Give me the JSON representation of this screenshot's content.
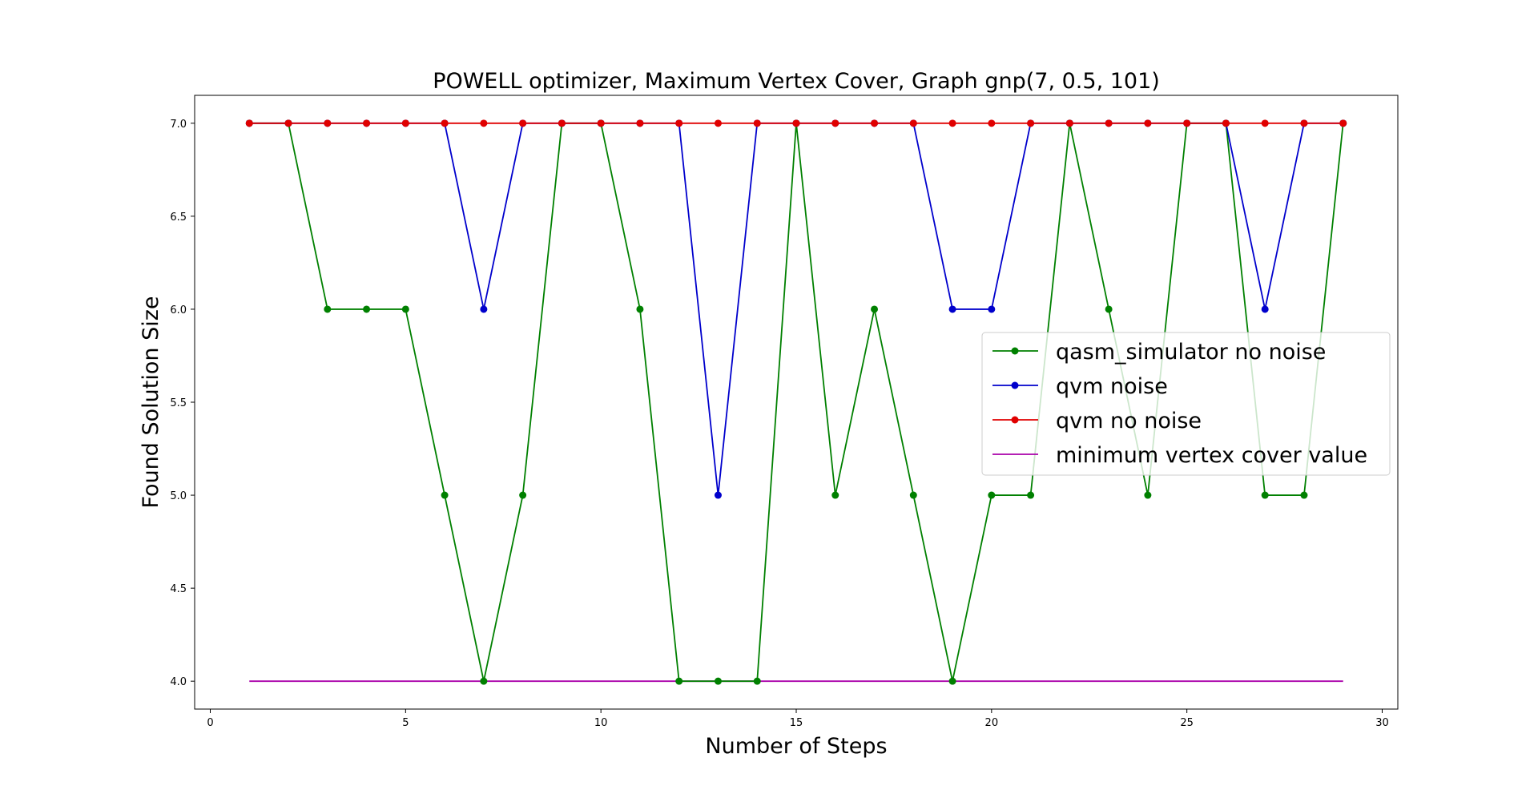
{
  "chart_data": {
    "type": "line",
    "title": "POWELL optimizer, Maximum Vertex Cover, Graph gnp(7, 0.5, 101)",
    "xlabel": "Number of Steps",
    "ylabel": "Found Solution Size",
    "xlim": [
      -0.4,
      30.4
    ],
    "ylim": [
      3.85,
      7.15
    ],
    "xticks": [
      0,
      5,
      10,
      15,
      20,
      25,
      30
    ],
    "yticks": [
      4.0,
      4.5,
      5.0,
      5.5,
      6.0,
      6.5,
      7.0
    ],
    "xtick_labels": [
      "0",
      "5",
      "10",
      "15",
      "20",
      "25",
      "30"
    ],
    "ytick_labels": [
      "4.0",
      "4.5",
      "5.0",
      "5.5",
      "6.0",
      "6.5",
      "7.0"
    ],
    "grid": false,
    "legend_position": "center-right",
    "x": [
      1,
      2,
      3,
      4,
      5,
      6,
      7,
      8,
      9,
      10,
      11,
      12,
      13,
      14,
      15,
      16,
      17,
      18,
      19,
      20,
      21,
      22,
      23,
      24,
      25,
      26,
      27,
      28,
      29
    ],
    "series": [
      {
        "name": "qasm_simulator no noise",
        "color": "#008000",
        "marker": true,
        "values": [
          7,
          7,
          6,
          6,
          6,
          5,
          4,
          5,
          7,
          7,
          6,
          4,
          4,
          4,
          7,
          5,
          6,
          5,
          4,
          5,
          5,
          7,
          6,
          5,
          7,
          7,
          5,
          5,
          7
        ]
      },
      {
        "name": "qvm noise",
        "color": "#0000cc",
        "marker": true,
        "values": [
          7,
          7,
          7,
          7,
          7,
          7,
          6,
          7,
          7,
          7,
          7,
          7,
          5,
          7,
          7,
          7,
          7,
          7,
          6,
          6,
          7,
          7,
          7,
          7,
          7,
          7,
          6,
          7,
          7
        ]
      },
      {
        "name": "qvm no noise",
        "color": "#e00000",
        "marker": true,
        "values": [
          7,
          7,
          7,
          7,
          7,
          7,
          7,
          7,
          7,
          7,
          7,
          7,
          7,
          7,
          7,
          7,
          7,
          7,
          7,
          7,
          7,
          7,
          7,
          7,
          7,
          7,
          7,
          7,
          7
        ]
      },
      {
        "name": "minimum vertex cover value",
        "color": "#aa00aa",
        "marker": false,
        "values": [
          4,
          4,
          4,
          4,
          4,
          4,
          4,
          4,
          4,
          4,
          4,
          4,
          4,
          4,
          4,
          4,
          4,
          4,
          4,
          4,
          4,
          4,
          4,
          4,
          4,
          4,
          4,
          4,
          4
        ]
      }
    ]
  }
}
